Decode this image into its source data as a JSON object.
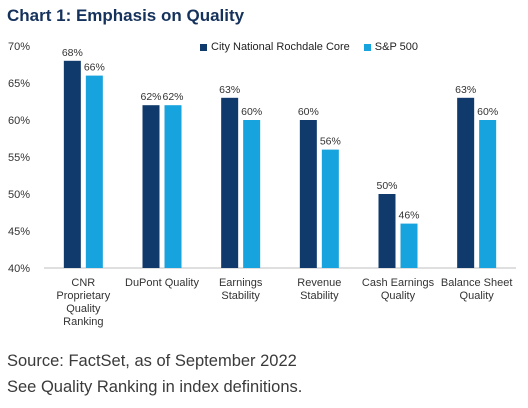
{
  "title": "Chart 1: Emphasis on Quality",
  "source_lines": [
    "Source: FactSet, as of September 2022",
    "See Quality Ranking in index definitions."
  ],
  "colors": {
    "cnr": "#0f3a6b",
    "sp500": "#17a3dd",
    "title": "#15325c"
  },
  "chart_data": {
    "type": "bar",
    "title": "Chart 1: Emphasis on Quality",
    "categories": [
      [
        "CNR",
        "Proprietary",
        "Quality",
        "Ranking"
      ],
      [
        "DuPont Quality"
      ],
      [
        "Earnings",
        "Stability"
      ],
      [
        "Revenue",
        "Stability"
      ],
      [
        "Cash Earnings",
        "Quality"
      ],
      [
        "Balance Sheet",
        "Quality"
      ]
    ],
    "series": [
      {
        "name": "City National Rochdale Core",
        "values": [
          68,
          62,
          63,
          60,
          50,
          63
        ],
        "labels": [
          "68%",
          "62%",
          "63%",
          "60%",
          "50%",
          "63%"
        ]
      },
      {
        "name": "S&P 500",
        "values": [
          66,
          62,
          60,
          56,
          46,
          60
        ],
        "labels": [
          "66%",
          "62%",
          "60%",
          "56%",
          "46%",
          "60%"
        ]
      }
    ],
    "ylim": [
      40,
      70
    ],
    "yticks": [
      40,
      45,
      50,
      55,
      60,
      65,
      70
    ],
    "ytick_labels": [
      "40%",
      "45%",
      "50%",
      "55%",
      "60%",
      "65%",
      "70%"
    ],
    "grid": false,
    "legend": "top"
  }
}
